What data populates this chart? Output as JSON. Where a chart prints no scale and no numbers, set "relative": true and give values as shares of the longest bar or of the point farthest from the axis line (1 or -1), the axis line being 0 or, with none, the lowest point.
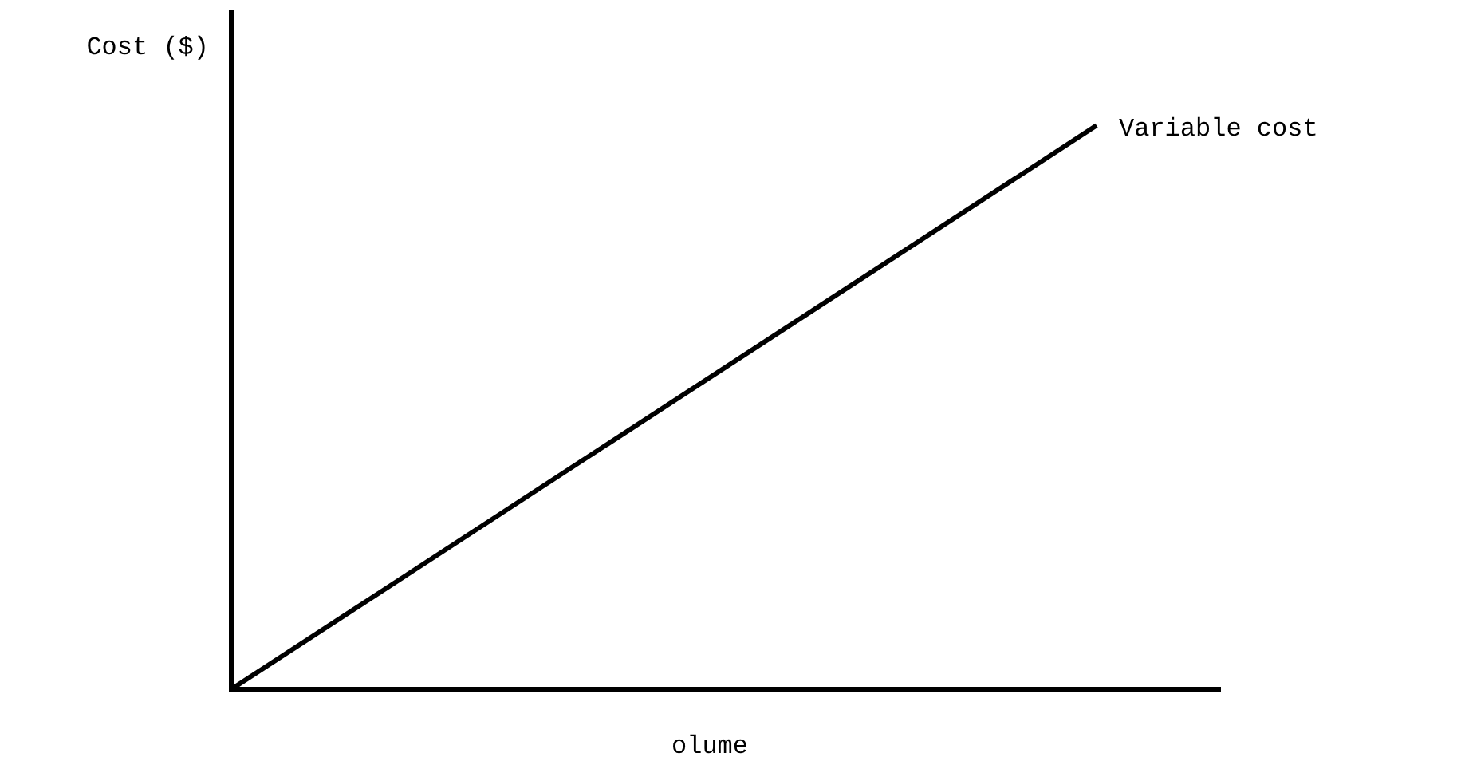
{
  "chart_data": {
    "type": "line",
    "xlabel": "olume",
    "ylabel": "Cost ($)",
    "relative": true,
    "marker": "none",
    "line_style": "solid",
    "categories": [
      null,
      null,
      null,
      null,
      null,
      null,
      null,
      null,
      null
    ],
    "series": [
      {
        "name": "Variable cost",
        "color": "#000000",
        "values": [
          0,
          null,
          null,
          null,
          null,
          null,
          null,
          1,
          null
        ]
      }
    ]
  }
}
